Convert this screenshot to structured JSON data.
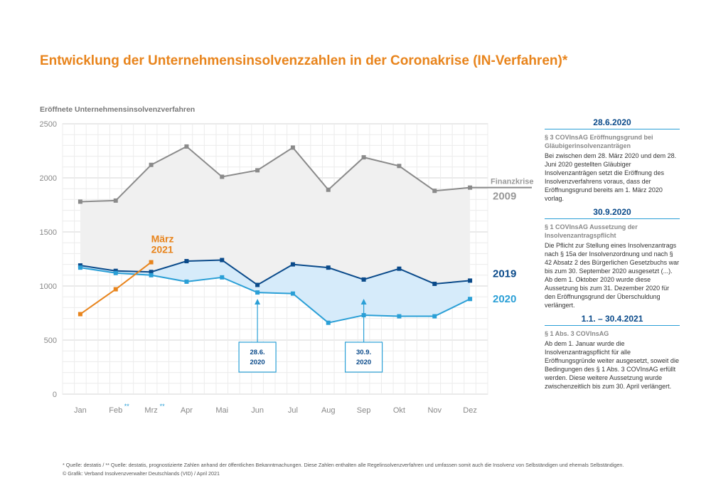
{
  "title": "Entwicklung der Unternehmensinsolvenzzahlen in der Coronakrise (IN-Verfahren)*",
  "colors": {
    "title": "#e8841c",
    "s2009": "#8a8a8a",
    "s2019": "#0a4a8a",
    "s2020": "#2a9fd6",
    "s2021": "#e8841c",
    "fill2009": "#f0f0f0",
    "fill2020": "#d6ebfa"
  },
  "chart_data": {
    "type": "line",
    "ylabel": "Eröffnete Unternehmensinsolvenzverfahren",
    "ylim": [
      0,
      2500
    ],
    "yticks": [
      0,
      500,
      1000,
      1500,
      2000,
      2500
    ],
    "categories": [
      "Jan",
      "Feb",
      "Mrz",
      "Apr",
      "Mai",
      "Jun",
      "Jul",
      "Aug",
      "Sep",
      "Okt",
      "Nov",
      "Dez"
    ],
    "category_marks": {
      "Feb": "**",
      "Mrz": "**"
    },
    "grid": true,
    "series": [
      {
        "name": "2009",
        "label_prefix": "Finanzkrise",
        "values": [
          1780,
          1790,
          2120,
          2290,
          2010,
          2070,
          2280,
          1890,
          2190,
          2110,
          1880,
          1910
        ]
      },
      {
        "name": "2019",
        "values": [
          1190,
          1140,
          1130,
          1230,
          1240,
          1010,
          1200,
          1170,
          1060,
          1160,
          1020,
          1050
        ]
      },
      {
        "name": "2020",
        "values": [
          1170,
          1120,
          1100,
          1040,
          1080,
          940,
          930,
          660,
          730,
          720,
          720,
          880
        ]
      },
      {
        "name": "März 2021",
        "label_lines": [
          "März",
          "2021"
        ],
        "values": [
          740,
          970,
          1220,
          null,
          null,
          null,
          null,
          null,
          null,
          null,
          null,
          null
        ]
      }
    ],
    "annotations": [
      {
        "lines": [
          "28.6.",
          "2020"
        ],
        "category": "Jun"
      },
      {
        "lines": [
          "30.9.",
          "2020"
        ],
        "category": "Sep"
      }
    ]
  },
  "sidebar": [
    {
      "date": "28.6.2020",
      "subtitle": "§ 3 COVInsAG Eröffnungsgrund bei Gläubigerinsolvenzanträgen",
      "text": "Bei zwischen dem 28. März 2020 und dem 28. Juni 2020 gestellten Gläubiger Insolvenzanträgen setzt die Eröffnung des Insolvenzverfahrens voraus, dass der Eröffnungsgrund bereits am 1. März 2020 vorlag."
    },
    {
      "date": "30.9.2020",
      "subtitle": "§ 1 COVInsAG Aussetzung der Insolvenzantragspflicht",
      "text": "Die Pflicht zur Stellung eines Insolvenzantrags nach § 15a der Insolvenzordnung und nach § 42 Absatz 2 des Bürgerlichen Gesetzbuchs war bis zum 30. September 2020 ausgesetzt (...). Ab dem 1. Oktober 2020 wurde diese Aussetzung bis zum 31. Dezember 2020 für den Eröffnungsgrund der Überschuldung verlängert."
    },
    {
      "date": "1.1. – 30.4.2021",
      "subtitle": "§ 1 Abs. 3 COVInsAG",
      "text": "Ab dem 1. Januar wurde die Insolvenzantragspflicht für alle Eröffnungsgründe weiter ausgesetzt, soweit die Bedingungen des § 1 Abs. 3 COVInsAG erfüllt werden. Diese weitere Aussetzung wurde zwischenzeitlich bis zum 30. April verlängert."
    }
  ],
  "footer": {
    "line1": "* Quelle: destatis / ** Quelle: destatis, prognostizierte Zahlen anhand der öffentlichen Bekanntmachungen. Diese Zahlen enthalten alle Regelinsolvenzverfahren und umfassen somit auch die Insolvenz von Selbständigen und ehemals Selbständigen.",
    "line2": "© Grafik: Verband Insolvenzverwalter Deutschlands (VID) / April 2021"
  }
}
